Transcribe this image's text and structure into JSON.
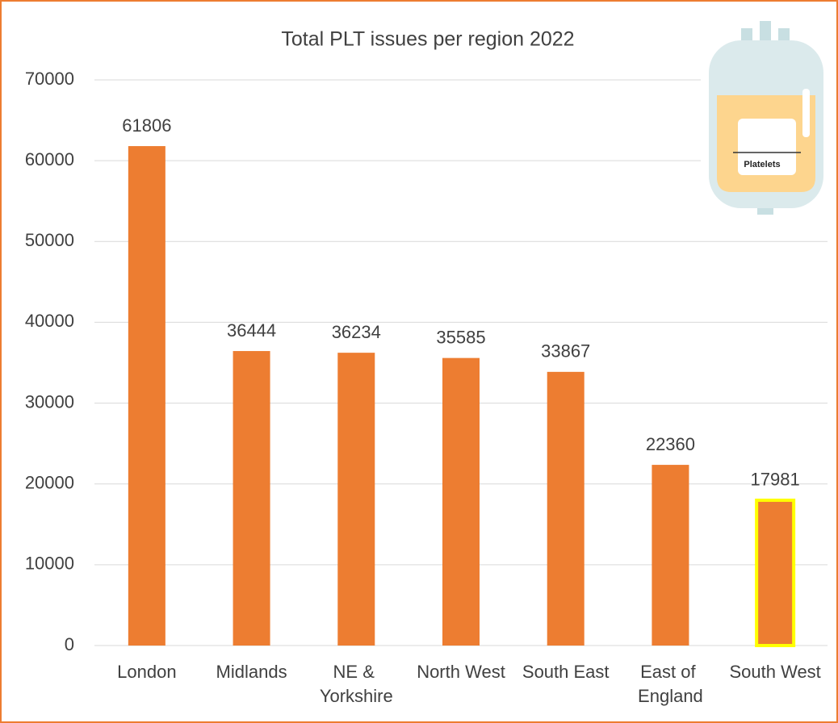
{
  "chart_data": {
    "type": "bar",
    "title": "Total PLT issues per region 2022",
    "categories": [
      "London",
      "Midlands",
      "NE & Yorkshire",
      "North West",
      "South East",
      "East of England",
      "South West"
    ],
    "values": [
      61806,
      36444,
      36234,
      35585,
      33867,
      22360,
      17981
    ],
    "color": "#ed7d31",
    "outline_colors": [
      null,
      null,
      null,
      null,
      null,
      null,
      "#ffff00"
    ],
    "ylim": [
      0,
      70000
    ],
    "yticks": [
      0,
      10000,
      20000,
      30000,
      40000,
      50000,
      60000,
      70000
    ],
    "grid": true,
    "icon_label": "Platelets"
  }
}
